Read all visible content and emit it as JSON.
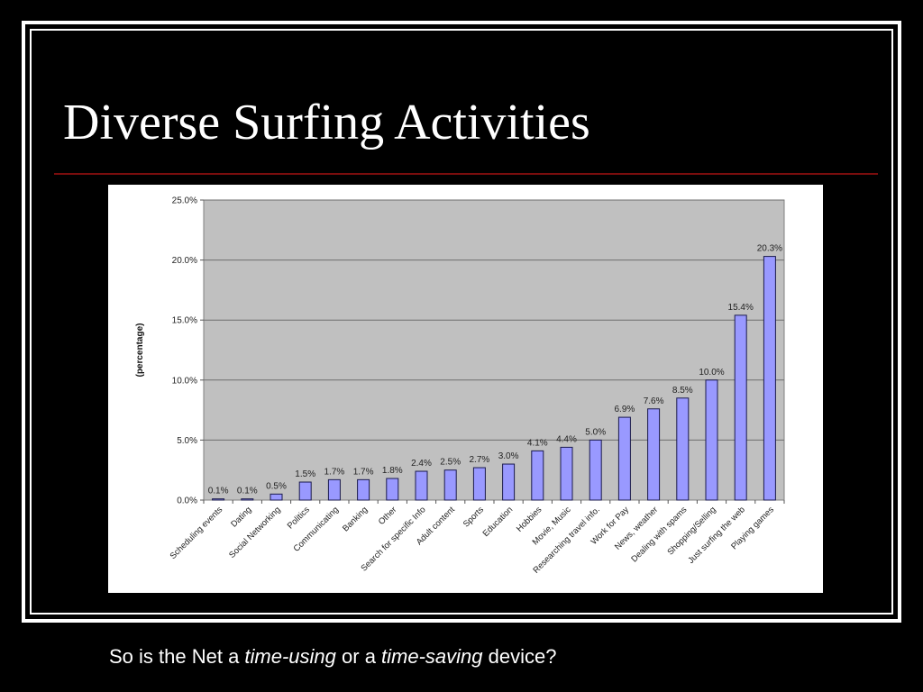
{
  "slide": {
    "title": "Diverse Surfing Activities",
    "caption": {
      "part1": "So is the Net a ",
      "em1": "time-using",
      "part2": " or a ",
      "em2": "time-saving",
      "part3": " device?"
    }
  },
  "colors": {
    "background": "#000000",
    "frame": "#ffffff",
    "title_text": "#ffffff",
    "rule": "#7a0d0d",
    "plot_area": "#c0c0c0",
    "bar_fill": "#9999ff",
    "bar_stroke": "#1a1a4d"
  },
  "chart_data": {
    "type": "bar",
    "ylabel": "(percentage)",
    "ylim": [
      0,
      25
    ],
    "yticks": [
      "0.0%",
      "5.0%",
      "10.0%",
      "15.0%",
      "20.0%",
      "25.0%"
    ],
    "grid": true,
    "legend": "none",
    "categories": [
      "Scheduling events",
      "Dating",
      "Social Networking",
      "Politics",
      "Communicating",
      "Banking",
      "Other",
      "Search for specific Info",
      "Adult content",
      "Sports",
      "Education",
      "Hobbies",
      "Movie, Music",
      "Researching travel info.",
      "Work for Pay",
      "News, weather",
      "Dealing with spams",
      "Shopping/Selling",
      "Just surfing the web",
      "Playing games"
    ],
    "values": [
      0.1,
      0.1,
      0.5,
      1.5,
      1.7,
      1.7,
      1.8,
      2.4,
      2.5,
      2.7,
      3.0,
      4.1,
      4.4,
      5.0,
      6.9,
      7.6,
      8.5,
      10.0,
      15.4,
      20.3
    ],
    "data_labels": [
      "0.1%",
      "0.1%",
      "0.5%",
      "1.5%",
      "1.7%",
      "1.7%",
      "1.8%",
      "2.4%",
      "2.5%",
      "2.7%",
      "3.0%",
      "4.1%",
      "4.4%",
      "5.0%",
      "6.9%",
      "7.6%",
      "8.5%",
      "10.0%",
      "15.4%",
      "20.3%"
    ]
  }
}
